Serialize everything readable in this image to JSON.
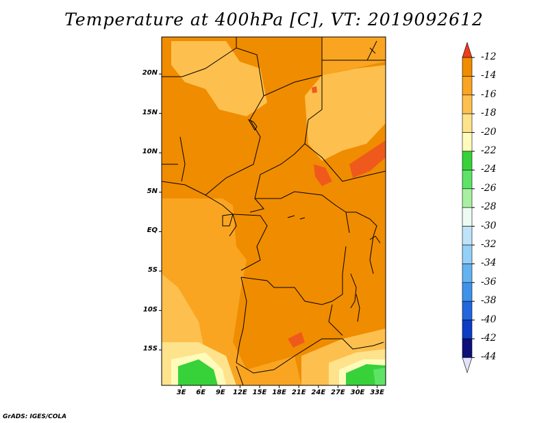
{
  "title": "Temperature at 400hPa [C], VT: 2019092612",
  "credit": "GrADS: IGES/COLA",
  "lat_ticks": [
    {
      "label": "20N",
      "lat": 20
    },
    {
      "label": "15N",
      "lat": 15
    },
    {
      "label": "10N",
      "lat": 10
    },
    {
      "label": "5N",
      "lat": 5
    },
    {
      "label": "EQ",
      "lat": 0
    },
    {
      "label": "5S",
      "lat": -5
    },
    {
      "label": "10S",
      "lat": -10
    },
    {
      "label": "15S",
      "lat": -15
    }
  ],
  "lon_ticks": [
    {
      "label": "3E",
      "lon": 3
    },
    {
      "label": "6E",
      "lon": 6
    },
    {
      "label": "9E",
      "lon": 9
    },
    {
      "label": "12E",
      "lon": 12
    },
    {
      "label": "15E",
      "lon": 15
    },
    {
      "label": "18E",
      "lon": 18
    },
    {
      "label": "21E",
      "lon": 21
    },
    {
      "label": "24E",
      "lon": 24
    },
    {
      "label": "27E",
      "lon": 27
    },
    {
      "label": "30E",
      "lon": 30
    },
    {
      "label": "33E",
      "lon": 33
    }
  ],
  "colorbar": {
    "labels": [
      "-12",
      "-14",
      "-16",
      "-18",
      "-20",
      "-22",
      "-24",
      "-26",
      "-28",
      "-30",
      "-32",
      "-34",
      "-36",
      "-38",
      "-40",
      "-42",
      "-44"
    ],
    "colors": [
      "#ef5a1c",
      "#f08c00",
      "#f9a521",
      "#fdc04e",
      "#fee38c",
      "#fffbbb",
      "#37d23a",
      "#5ee367",
      "#a8f0a1",
      "#ecfcf4",
      "#bfe3f8",
      "#94d0f7",
      "#64b3f0",
      "#3f92ea",
      "#2066de",
      "#0d3dc4",
      "#0d0f7a"
    ],
    "top_arrow_color": "#ef3c1c",
    "bottom_arrow_color": "#e2e2fb"
  },
  "map_extent": {
    "lon_min": 0,
    "lon_max": 34.3,
    "lat_max": 24.7,
    "lat_min": -19.5
  }
}
